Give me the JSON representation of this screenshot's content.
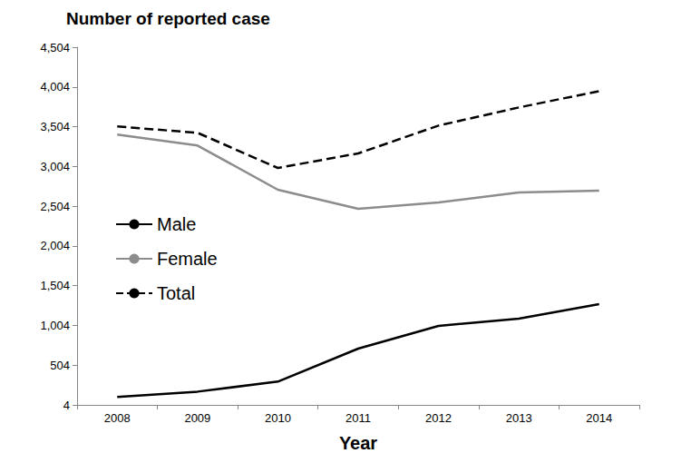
{
  "chart_data": {
    "type": "line",
    "title": "Number of reported case",
    "x_label": "Year",
    "categories": [
      "2008",
      "2009",
      "2010",
      "2011",
      "2012",
      "2013",
      "2014"
    ],
    "series": [
      {
        "name": "Male",
        "color": "#000000",
        "line_style": "solid",
        "values": [
          103,
          171,
          297,
          712,
          998,
          1089,
          1272
        ]
      },
      {
        "name": "Female",
        "color": "#8c8c8c",
        "line_style": "solid",
        "values": [
          3404,
          3267,
          2711,
          2471,
          2551,
          2676,
          2699
        ]
      },
      {
        "name": "Total",
        "color": "#000000",
        "line_style": "dashed",
        "values": [
          3507,
          3427,
          2985,
          3168,
          3518,
          3746,
          3952
        ]
      }
    ],
    "ylim": [
      4,
      4504
    ],
    "yticks": [
      4,
      504,
      {
        "value": 1004,
        "label": "1,004"
      },
      {
        "value": 1504,
        "label": "1,504"
      },
      {
        "value": 2004,
        "label": "2,004"
      },
      {
        "value": 2504,
        "label": "2,504"
      },
      {
        "value": 3004,
        "label": "3,004"
      },
      {
        "value": 3504,
        "label": "3,504"
      },
      {
        "value": 4004,
        "label": "4,004"
      },
      {
        "value": 4504,
        "label": "4,504"
      }
    ],
    "grid": false,
    "legend": "left"
  }
}
